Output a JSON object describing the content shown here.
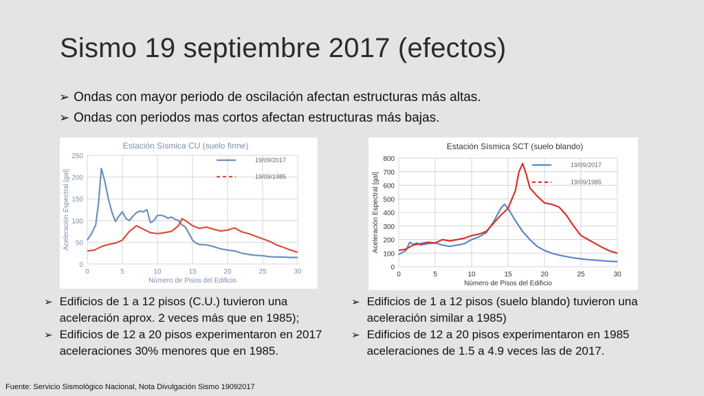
{
  "slide": {
    "title": "Sismo 19 septiembre 2017 (efectos)",
    "top_bullets": [
      "Ondas con mayor periodo de oscilación afectan estructuras más altas.",
      "Ondas con periodos mas cortos afectan estructuras más bajas."
    ],
    "left_bullets": [
      "Edificios de 1 a 12 pisos (C.U.) tuvieron una aceleración aprox. 2 veces más que en 1985);",
      "Edificios de 12 a 20 pisos experimentaron en 2017 aceleraciones 30% menores que en  1985."
    ],
    "right_bullets": [
      "Edificios de 1 a 12 pisos (suelo blando) tuvieron una aceleración similar a 1985)",
      "Edificios de 12 a 20 pisos experimentaron en 1985 aceleraciones de 1.5 a 4.9 veces las de 2017."
    ],
    "source": "Fuente: Servicio Sismológico Nacional, Nota Divulgación Sismo 19092017"
  },
  "chart_data": [
    {
      "type": "line",
      "title": "Estación Sísmica CU (suelo firme)",
      "xlabel": "Número de Pisos del Edificio",
      "ylabel": "Aceleración Espectral [gal]",
      "xlim": [
        0,
        30
      ],
      "ylim": [
        0,
        250
      ],
      "xticks": [
        "0",
        "5",
        "10",
        "15",
        "20",
        "25",
        "30"
      ],
      "yticks": [
        "0",
        "50",
        "100",
        "150",
        "200",
        "250"
      ],
      "grid": true,
      "legend_position": "top-right",
      "colors": {
        "2017": "#6b8fbf",
        "1985": "#e04a3a"
      },
      "series": [
        {
          "name": "19/09/2017",
          "x": [
            0,
            0.6,
            1.2,
            1.6,
            2.0,
            2.5,
            3.0,
            3.5,
            4.0,
            4.5,
            5.0,
            5.5,
            6.0,
            6.5,
            7.0,
            7.5,
            8.0,
            8.5,
            9.0,
            9.5,
            10.0,
            10.5,
            11.0,
            11.5,
            12.0,
            12.5,
            13.0,
            13.5,
            14.0,
            14.5,
            15.0,
            15.5,
            16.0,
            17.0,
            18.0,
            19.0,
            20.0,
            21.0,
            22.0,
            23.0,
            24.0,
            25.0,
            26.0,
            27.0,
            28.0,
            29.0,
            30.0
          ],
          "y": [
            55,
            70,
            90,
            140,
            220,
            190,
            150,
            120,
            98,
            110,
            120,
            105,
            100,
            110,
            118,
            122,
            120,
            125,
            95,
            100,
            112,
            112,
            110,
            105,
            108,
            103,
            100,
            90,
            85,
            70,
            55,
            48,
            45,
            44,
            40,
            35,
            32,
            30,
            25,
            22,
            20,
            19,
            17,
            16,
            16,
            15,
            15
          ]
        },
        {
          "name": "19/09/1985",
          "x": [
            0,
            1,
            2,
            3,
            4,
            5,
            6,
            7,
            8,
            9,
            10,
            11,
            12,
            13,
            13.5,
            14,
            15,
            16,
            17,
            18,
            19,
            20,
            21,
            22,
            23,
            24,
            25,
            26,
            27,
            28,
            29,
            30
          ],
          "y": [
            30,
            32,
            40,
            45,
            48,
            55,
            75,
            88,
            80,
            72,
            70,
            72,
            75,
            88,
            104,
            100,
            88,
            82,
            85,
            80,
            76,
            78,
            83,
            74,
            70,
            64,
            58,
            52,
            44,
            38,
            32,
            27
          ]
        }
      ]
    },
    {
      "type": "line",
      "title": "Estación Sísmica SCT (suelo blando)",
      "xlabel": "Número de Pisos del Edificio",
      "ylabel": "Aceleración Espectral [gal]",
      "xlim": [
        0,
        30
      ],
      "ylim": [
        0,
        800
      ],
      "xticks": [
        "0",
        "5",
        "10",
        "15",
        "20",
        "25",
        "30"
      ],
      "yticks": [
        "0",
        "100",
        "200",
        "300",
        "400",
        "500",
        "600",
        "700",
        "800"
      ],
      "grid": true,
      "legend_position": "top-right",
      "colors": {
        "2017": "#5a86c5",
        "1985": "#d6302a"
      },
      "series": [
        {
          "name": "19/09/2017",
          "x": [
            0,
            1,
            1.5,
            2,
            2.5,
            3,
            4,
            5,
            6,
            7,
            8,
            9,
            10,
            11,
            12,
            13,
            14,
            14.5,
            15,
            16,
            17,
            18,
            19,
            20,
            21,
            22,
            23,
            24,
            25,
            26,
            27,
            28,
            29,
            30
          ],
          "y": [
            90,
            120,
            180,
            165,
            175,
            160,
            170,
            175,
            160,
            150,
            160,
            170,
            200,
            220,
            250,
            330,
            430,
            460,
            430,
            340,
            260,
            200,
            150,
            120,
            100,
            85,
            75,
            65,
            58,
            52,
            48,
            44,
            40,
            38
          ]
        },
        {
          "name": "19/09/1985",
          "x": [
            0,
            1,
            2,
            3,
            4,
            5,
            6,
            7,
            8,
            9,
            10,
            11,
            12,
            13,
            14,
            15,
            16,
            16.5,
            17,
            17.5,
            18,
            19,
            20,
            21,
            22,
            23,
            24,
            25,
            26,
            27,
            28,
            29,
            30
          ],
          "y": [
            120,
            130,
            160,
            170,
            180,
            175,
            200,
            190,
            200,
            210,
            230,
            240,
            260,
            320,
            380,
            430,
            560,
            700,
            760,
            680,
            580,
            520,
            470,
            460,
            440,
            380,
            300,
            230,
            200,
            170,
            140,
            115,
            100
          ]
        }
      ]
    }
  ]
}
